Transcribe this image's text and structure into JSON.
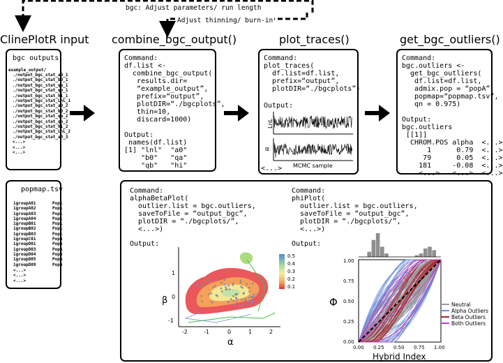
{
  "headings": {
    "input": "ClinePlotR input",
    "combine": "combine_bgc_output()",
    "plot": "plot_traces()",
    "outliers": "get_bgc_outliers()"
  },
  "arrow_labels": {
    "adjust_params": "bgc: Adjust parameters/ run length",
    "adjust_thinning": "Adjust thinning/ burn-in"
  },
  "bgc_outputs": {
    "title": "bgc outputs:",
    "folder": "example_output/",
    "files": [
      "./output_bgc_stat_a0_1",
      "./output_bgc_stat_b0_1",
      "./output_bgc_stat_qa_1",
      "./output_bgc_stat_qb_1",
      "./output_bgc_stat_hi_1",
      "./output_bgc_stat_LnL_1",
      "./output_bgc_stat_a0_2",
      "./output_bgc_stat_b0_2",
      "./output_bgc_stat_qa_2",
      "./output_bgc_stat_qb_2",
      "./output_bgc_stat_hi_2",
      "./output_bgc_stat_LnL_2",
      "./output_bgc_stat_a0_3"
    ],
    "ellipsis": [
      "<...>",
      "<...>",
      "<...>"
    ]
  },
  "popmap": {
    "title": "popmap.tsv",
    "rows": [
      [
        "1groupA01",
        "Pop1"
      ],
      [
        "1groupA02",
        "Pop1"
      ],
      [
        "1groupA03",
        "Pop1"
      ],
      [
        "1groupA04",
        "Pop1"
      ],
      [
        "1groupB01",
        "Pop1"
      ],
      [
        "1groupB02",
        "Pop1"
      ],
      [
        "1groupB03",
        "Pop1"
      ],
      [
        "1groupC01",
        "PopA"
      ],
      [
        "1groupD01",
        "PopA"
      ],
      [
        "1groupD03",
        "PopA"
      ],
      [
        "1groupD04",
        "PopA"
      ],
      [
        "1groupD05",
        "PopA"
      ],
      [
        "1groupD09",
        "PopA"
      ]
    ],
    "ellipsis": [
      "<...>",
      "<...>",
      "<...>"
    ]
  },
  "combine_panel": {
    "command_lines": [
      "Command:",
      "df.list <-",
      "  combine_bgc_output(",
      "   results.dir=",
      "   “example_output”,",
      "   prefix=“output”,",
      "   plotDIR=“./bgcplots”,",
      "   thin=10,",
      "   discard=1000)"
    ],
    "output_lines": [
      "Output:",
      " names(df.list)",
      "[1] \"lnl\"  \"a0\"",
      "    \"b0\"   \"qa\"",
      "    \"qb\"   \"hi\""
    ]
  },
  "traces_panel": {
    "command_lines": [
      "Command:",
      "plot_traces(",
      "  df.list=df.list,",
      "  prefix=“output”,",
      "  plotDIR=“./bgcplots”)"
    ],
    "output_label": "Output:",
    "y_label_top": "LnL",
    "y_label_bottom": "α",
    "x_label": "MCMC sample",
    "ellipsis": "<...>"
  },
  "outliers_panel": {
    "command_lines": [
      "Command:",
      "bgc.outliers <-",
      "  get_bgc_outliers(",
      "   df.list=df.list,",
      "   admix.pop = “popA”,",
      "   popmap=“popmap.tsv”,",
      "   qn = 0.975)"
    ],
    "output_lines": [
      "Output:",
      "bgc.outliers",
      " [[1]]",
      "  CHROM.POS alpha  <...>",
      "      1      0.79  <...>",
      "     79      0.05  <...>",
      "    181     -0.08  <...>",
      "    <...>   <...>  <...>"
    ]
  },
  "alphabeta_panel": {
    "command_lines": [
      "Command:",
      "alphaBetaPlot(",
      "  outlier.list = bgc.outliers,",
      "  saveToFile = “output_bgc”,",
      "  plotDIR = “./bgcplots/”,",
      "  <...>)"
    ],
    "output_label": "Output:",
    "xlabel": "α",
    "ylabel": "β",
    "xticks": [
      "-2",
      "-1",
      "0",
      "1",
      "2"
    ],
    "yticks": [
      "1",
      "0",
      "-1"
    ],
    "colorbar_ticks": [
      "0.5",
      "0.4",
      "0.3",
      "0.2",
      "0.1"
    ]
  },
  "phi_panel": {
    "command_lines": [
      "Command:",
      "phiPlot(",
      "  outlier.list = bgc.outliers,",
      "  saveToFile = “output_bgc”,",
      "  plotDIR = “./bgcplots/”,",
      "  <...>)"
    ],
    "output_label": "Output:",
    "xlabel": "Hybrid Index",
    "ylabel": "Φ",
    "xticks": [
      "0.00",
      "0.25",
      "0.50",
      "0.75",
      "1.00"
    ],
    "yticks": [
      "1.00",
      "0.75",
      "0.50",
      "0.25",
      "0.00"
    ],
    "legend": [
      {
        "label": "Neutral",
        "color": "#9a9a9a"
      },
      {
        "label": "Alpha Outliers",
        "color": "#6f8fd8"
      },
      {
        "label": "Beta Outliers",
        "color": "#b0202a"
      },
      {
        "label": "Both Outliers",
        "color": "#c040c0"
      }
    ],
    "histogram_counts": [
      0,
      0,
      3,
      10,
      14,
      6,
      2,
      0,
      0,
      0,
      0,
      0,
      0,
      1,
      2,
      5,
      6,
      4,
      0
    ]
  }
}
